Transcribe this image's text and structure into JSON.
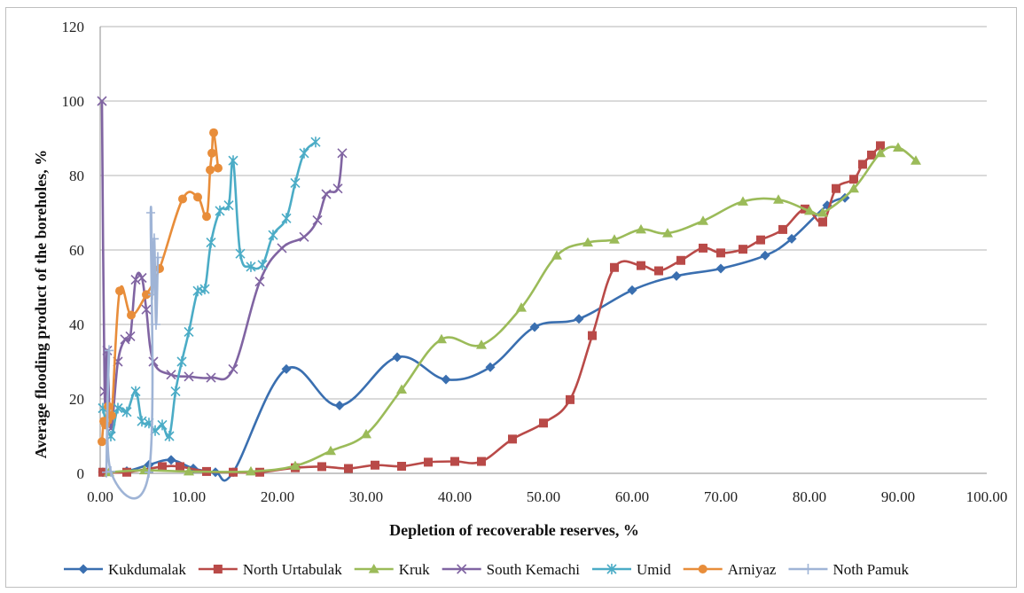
{
  "chart_data": {
    "type": "line",
    "title": "",
    "xlabel": "Depletion of recoverable reserves, %",
    "ylabel": "Average flooding product of the boreholes, %",
    "xlim": [
      0,
      100
    ],
    "ylim": [
      0,
      120
    ],
    "xticks": [
      "0.00",
      "10.00",
      "20.00",
      "30.00",
      "40.00",
      "50.00",
      "60.00",
      "70.00",
      "80.00",
      "90.00",
      "100.00"
    ],
    "yticks": [
      "0",
      "20",
      "40",
      "60",
      "80",
      "100",
      "120"
    ],
    "grid": "horizontal",
    "legend_position": "bottom",
    "series": [
      {
        "name": "Kukdumalak",
        "color": "#3a6fb0",
        "marker": "diamond",
        "points": [
          [
            0.3,
            0.3
          ],
          [
            3,
            0.6
          ],
          [
            5.5,
            2.3
          ],
          [
            8,
            3.6
          ],
          [
            10.5,
            1.3
          ],
          [
            13,
            0.3
          ],
          [
            15,
            0.3
          ],
          [
            21,
            28
          ],
          [
            27,
            18.2
          ],
          [
            33.5,
            31.2
          ],
          [
            39,
            25.2
          ],
          [
            44,
            28.5
          ],
          [
            49,
            39.3
          ],
          [
            54,
            41.5
          ],
          [
            60,
            49.2
          ],
          [
            65,
            53
          ],
          [
            70,
            55
          ],
          [
            75,
            58.5
          ],
          [
            78,
            63
          ],
          [
            82,
            72
          ],
          [
            84,
            74
          ]
        ]
      },
      {
        "name": "North Urtabulak",
        "color": "#b94a48",
        "marker": "square",
        "points": [
          [
            0.3,
            0.3
          ],
          [
            3,
            0.3
          ],
          [
            7,
            1.8
          ],
          [
            9,
            1.8
          ],
          [
            12,
            0.5
          ],
          [
            15,
            0.3
          ],
          [
            18,
            0.3
          ],
          [
            22,
            1.5
          ],
          [
            25,
            1.8
          ],
          [
            28,
            1.3
          ],
          [
            31,
            2.2
          ],
          [
            34,
            1.9
          ],
          [
            37,
            3
          ],
          [
            40,
            3.2
          ],
          [
            43,
            3.2
          ],
          [
            46.5,
            9.2
          ],
          [
            50,
            13.5
          ],
          [
            53,
            19.8
          ],
          [
            55.5,
            37
          ],
          [
            58,
            55.3
          ],
          [
            61,
            55.8
          ],
          [
            63,
            54.4
          ],
          [
            65.5,
            57.2
          ],
          [
            68,
            60.5
          ],
          [
            70,
            59.2
          ],
          [
            72.5,
            60.2
          ],
          [
            74.5,
            62.7
          ],
          [
            77,
            65.5
          ],
          [
            79.5,
            71
          ],
          [
            81.5,
            67.5
          ],
          [
            83,
            76.5
          ],
          [
            85,
            79
          ],
          [
            86,
            83
          ],
          [
            87,
            85.5
          ],
          [
            88,
            88
          ]
        ]
      },
      {
        "name": "Kruk",
        "color": "#9bbb59",
        "marker": "triangle",
        "points": [
          [
            1,
            0.3
          ],
          [
            5,
            0.8
          ],
          [
            10,
            0.5
          ],
          [
            17,
            0.5
          ],
          [
            22,
            2
          ],
          [
            26,
            6
          ],
          [
            30,
            10.5
          ],
          [
            34,
            22.5
          ],
          [
            38.5,
            36
          ],
          [
            43,
            34.5
          ],
          [
            47.5,
            44.5
          ],
          [
            51.5,
            58.5
          ],
          [
            55,
            62
          ],
          [
            58,
            62.8
          ],
          [
            61,
            65.5
          ],
          [
            64,
            64.5
          ],
          [
            68,
            67.8
          ],
          [
            72.5,
            73
          ],
          [
            76.5,
            73.5
          ],
          [
            80,
            70.5
          ],
          [
            81.5,
            70
          ],
          [
            85,
            76.5
          ],
          [
            88,
            86
          ],
          [
            90,
            87.5
          ],
          [
            92,
            84
          ]
        ]
      },
      {
        "name": "South Kemachi",
        "color": "#8064a2",
        "marker": "x",
        "points": [
          [
            0.2,
            100
          ],
          [
            0.5,
            22
          ],
          [
            0.8,
            33
          ],
          [
            1.2,
            12
          ],
          [
            2,
            30
          ],
          [
            2.8,
            36
          ],
          [
            3.4,
            36.8
          ],
          [
            4,
            52
          ],
          [
            4.7,
            52.5
          ],
          [
            5.2,
            44
          ],
          [
            6,
            30
          ],
          [
            8,
            26.5
          ],
          [
            10,
            26
          ],
          [
            12.5,
            25.7
          ],
          [
            15,
            28
          ],
          [
            18,
            51.5
          ],
          [
            20.5,
            60.5
          ],
          [
            23,
            63.5
          ],
          [
            24.5,
            68
          ],
          [
            25.5,
            75
          ],
          [
            26.8,
            76.5
          ],
          [
            27.3,
            86
          ]
        ]
      },
      {
        "name": "Umid",
        "color": "#4bacc6",
        "marker": "star",
        "points": [
          [
            0.3,
            17.5
          ],
          [
            1.2,
            10
          ],
          [
            2,
            17.5
          ],
          [
            3,
            16.5
          ],
          [
            4,
            22
          ],
          [
            4.7,
            14
          ],
          [
            5.5,
            13.5
          ],
          [
            6.2,
            11.5
          ],
          [
            7,
            13
          ],
          [
            7.8,
            10
          ],
          [
            8.5,
            22
          ],
          [
            9.2,
            30
          ],
          [
            10,
            38
          ],
          [
            11,
            49
          ],
          [
            11.8,
            49.5
          ],
          [
            12.5,
            62
          ],
          [
            13.5,
            70.5
          ],
          [
            14.5,
            72
          ],
          [
            15,
            84
          ],
          [
            15.8,
            59
          ],
          [
            17,
            55.5
          ],
          [
            18.3,
            56
          ],
          [
            19.5,
            64
          ],
          [
            21,
            68.5
          ],
          [
            22,
            78
          ],
          [
            23,
            86
          ],
          [
            24.3,
            89
          ]
        ]
      },
      {
        "name": "Arniyaz",
        "color": "#e88d3a",
        "marker": "circle",
        "points": [
          [
            0.2,
            8.5
          ],
          [
            0.4,
            14
          ],
          [
            0.6,
            13
          ],
          [
            0.9,
            18
          ],
          [
            1.3,
            15.5
          ],
          [
            2.2,
            49
          ],
          [
            3.5,
            42.5
          ],
          [
            5.2,
            48
          ],
          [
            6.7,
            55
          ],
          [
            9.3,
            73.7
          ],
          [
            11,
            74.2
          ],
          [
            12,
            69
          ],
          [
            12.4,
            81.5
          ],
          [
            12.6,
            86
          ],
          [
            12.8,
            91.5
          ],
          [
            13.3,
            82
          ]
        ]
      },
      {
        "name": "Noth Pamuk",
        "color": "#9fb4d6",
        "marker": "plus",
        "points": [
          [
            0.7,
            0.3
          ],
          [
            1,
            33
          ],
          [
            1.2,
            0.5
          ],
          [
            5.5,
            0.3
          ],
          [
            5.7,
            70
          ],
          [
            5.9,
            48
          ],
          [
            6.1,
            63
          ],
          [
            6.3,
            40
          ],
          [
            6.5,
            58
          ]
        ]
      }
    ]
  }
}
